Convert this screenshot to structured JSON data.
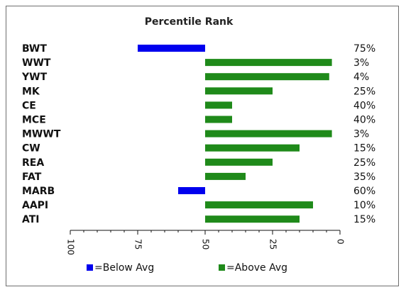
{
  "chart_data": {
    "type": "bar",
    "orientation": "horizontal",
    "title": "Percentile Rank",
    "categories": [
      "BWT",
      "WWT",
      "YWT",
      "MK",
      "CE",
      "MCE",
      "MWWT",
      "CW",
      "REA",
      "FAT",
      "MARB",
      "AAPI",
      "ATI"
    ],
    "values": [
      75,
      3,
      4,
      25,
      40,
      40,
      3,
      15,
      25,
      35,
      60,
      10,
      15
    ],
    "value_labels": [
      "75%",
      "3%",
      "4%",
      "25%",
      "40%",
      "40%",
      "3%",
      "15%",
      "25%",
      "35%",
      "60%",
      "10%",
      "15%"
    ],
    "baseline": 50,
    "xlim": [
      100,
      0
    ],
    "xticks": [
      "100",
      "75",
      "50",
      "25",
      "0"
    ],
    "xtick_values": [
      100,
      75,
      50,
      25,
      0
    ],
    "tick_label_rotation": 90,
    "grid": false,
    "colors": {
      "below_avg": "#0000ee",
      "above_avg": "#1f8a1a"
    },
    "legend": {
      "position": "bottom",
      "entries": [
        {
          "label": "=Below Avg",
          "color": "#0000ee"
        },
        {
          "label": "=Above Avg",
          "color": "#1f8a1a"
        }
      ]
    }
  }
}
